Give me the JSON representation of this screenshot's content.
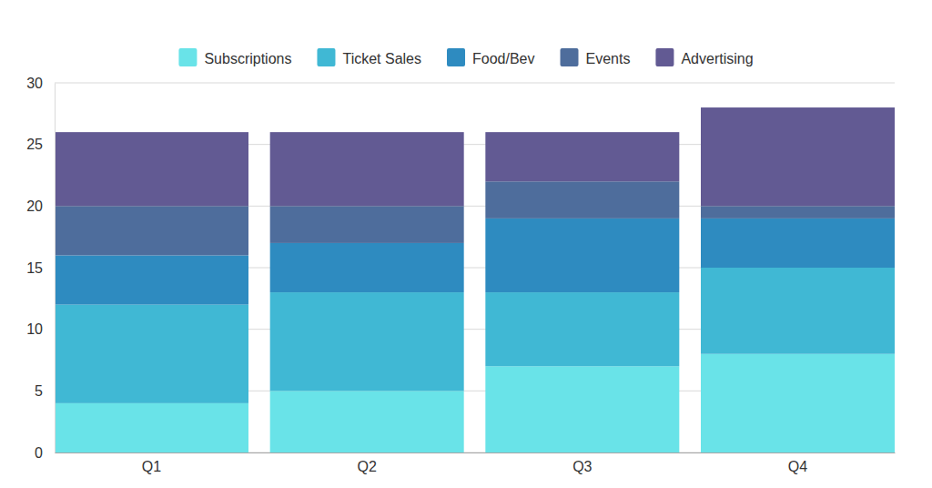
{
  "chart_data": {
    "type": "bar",
    "stacked": true,
    "grid": true,
    "legend": "top",
    "categories": [
      "Q1",
      "Q2",
      "Q3",
      "Q4"
    ],
    "series": [
      {
        "name": "Subscriptions",
        "color": "#69e3e8",
        "values": [
          4,
          5,
          7,
          8
        ]
      },
      {
        "name": "Ticket Sales",
        "color": "#40b8d4",
        "values": [
          8,
          8,
          6,
          7
        ]
      },
      {
        "name": "Food/Bev",
        "color": "#2e8bc0",
        "values": [
          4,
          4,
          6,
          4
        ]
      },
      {
        "name": "Events",
        "color": "#4e6d9c",
        "values": [
          4,
          3,
          3,
          1
        ]
      },
      {
        "name": "Advertising",
        "color": "#625a93",
        "values": [
          6,
          6,
          4,
          8
        ]
      }
    ],
    "ylim": [
      0,
      30
    ],
    "yticks": [
      0,
      5,
      10,
      15,
      20,
      25,
      30
    ]
  }
}
